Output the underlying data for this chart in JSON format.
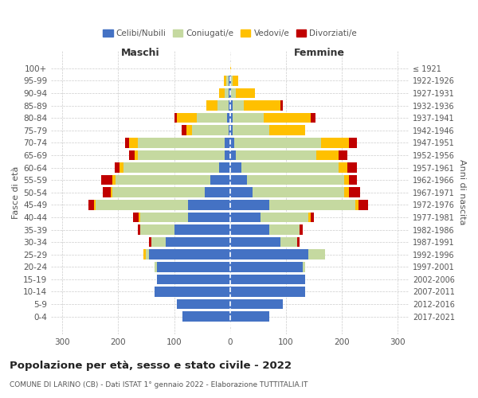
{
  "age_groups": [
    "0-4",
    "5-9",
    "10-14",
    "15-19",
    "20-24",
    "25-29",
    "30-34",
    "35-39",
    "40-44",
    "45-49",
    "50-54",
    "55-59",
    "60-64",
    "65-69",
    "70-74",
    "75-79",
    "80-84",
    "85-89",
    "90-94",
    "95-99",
    "100+"
  ],
  "birth_years": [
    "2017-2021",
    "2012-2016",
    "2007-2011",
    "2002-2006",
    "1997-2001",
    "1992-1996",
    "1987-1991",
    "1982-1986",
    "1977-1981",
    "1972-1976",
    "1967-1971",
    "1962-1966",
    "1957-1961",
    "1952-1956",
    "1947-1951",
    "1942-1946",
    "1937-1941",
    "1932-1936",
    "1927-1931",
    "1922-1926",
    "≤ 1921"
  ],
  "maschi": {
    "celibi": [
      85,
      95,
      135,
      130,
      130,
      145,
      115,
      100,
      75,
      75,
      45,
      35,
      20,
      10,
      10,
      3,
      5,
      2,
      2,
      2,
      0
    ],
    "coniugati": [
      0,
      0,
      0,
      0,
      5,
      5,
      25,
      60,
      85,
      165,
      165,
      170,
      170,
      155,
      155,
      65,
      55,
      20,
      8,
      5,
      0
    ],
    "vedovi": [
      0,
      0,
      0,
      0,
      0,
      5,
      0,
      0,
      3,
      3,
      3,
      5,
      8,
      5,
      15,
      10,
      35,
      20,
      10,
      4,
      0
    ],
    "divorziati": [
      0,
      0,
      0,
      0,
      0,
      0,
      5,
      5,
      10,
      10,
      15,
      20,
      8,
      10,
      8,
      8,
      5,
      0,
      0,
      0,
      0
    ]
  },
  "femmine": {
    "nubili": [
      70,
      95,
      135,
      135,
      130,
      140,
      90,
      70,
      55,
      70,
      40,
      30,
      20,
      10,
      8,
      5,
      5,
      5,
      2,
      2,
      0
    ],
    "coniugate": [
      0,
      0,
      0,
      0,
      5,
      30,
      30,
      55,
      85,
      155,
      165,
      175,
      175,
      145,
      155,
      65,
      55,
      20,
      8,
      3,
      0
    ],
    "vedove": [
      0,
      0,
      0,
      0,
      0,
      0,
      0,
      0,
      5,
      5,
      8,
      8,
      15,
      40,
      50,
      65,
      85,
      65,
      35,
      10,
      2
    ],
    "divorziate": [
      0,
      0,
      0,
      0,
      0,
      0,
      5,
      5,
      5,
      18,
      20,
      15,
      18,
      15,
      15,
      0,
      8,
      5,
      0,
      0,
      0
    ]
  },
  "colors": {
    "celibi_nubili": "#4472c4",
    "coniugati": "#c5d9a0",
    "vedovi": "#ffc000",
    "divorziati": "#c00000"
  },
  "xlim": 320,
  "title": "Popolazione per età, sesso e stato civile - 2022",
  "subtitle": "COMUNE DI LARINO (CB) - Dati ISTAT 1° gennaio 2022 - Elaborazione TUTTITALIA.IT",
  "ylabel_left": "Fasce di età",
  "ylabel_right": "Anni di nascita",
  "xlabel_maschi": "Maschi",
  "xlabel_femmine": "Femmine",
  "legend_labels": [
    "Celibi/Nubili",
    "Coniugati/e",
    "Vedovi/e",
    "Divorziati/e"
  ],
  "background_color": "#ffffff",
  "bar_height": 0.8
}
